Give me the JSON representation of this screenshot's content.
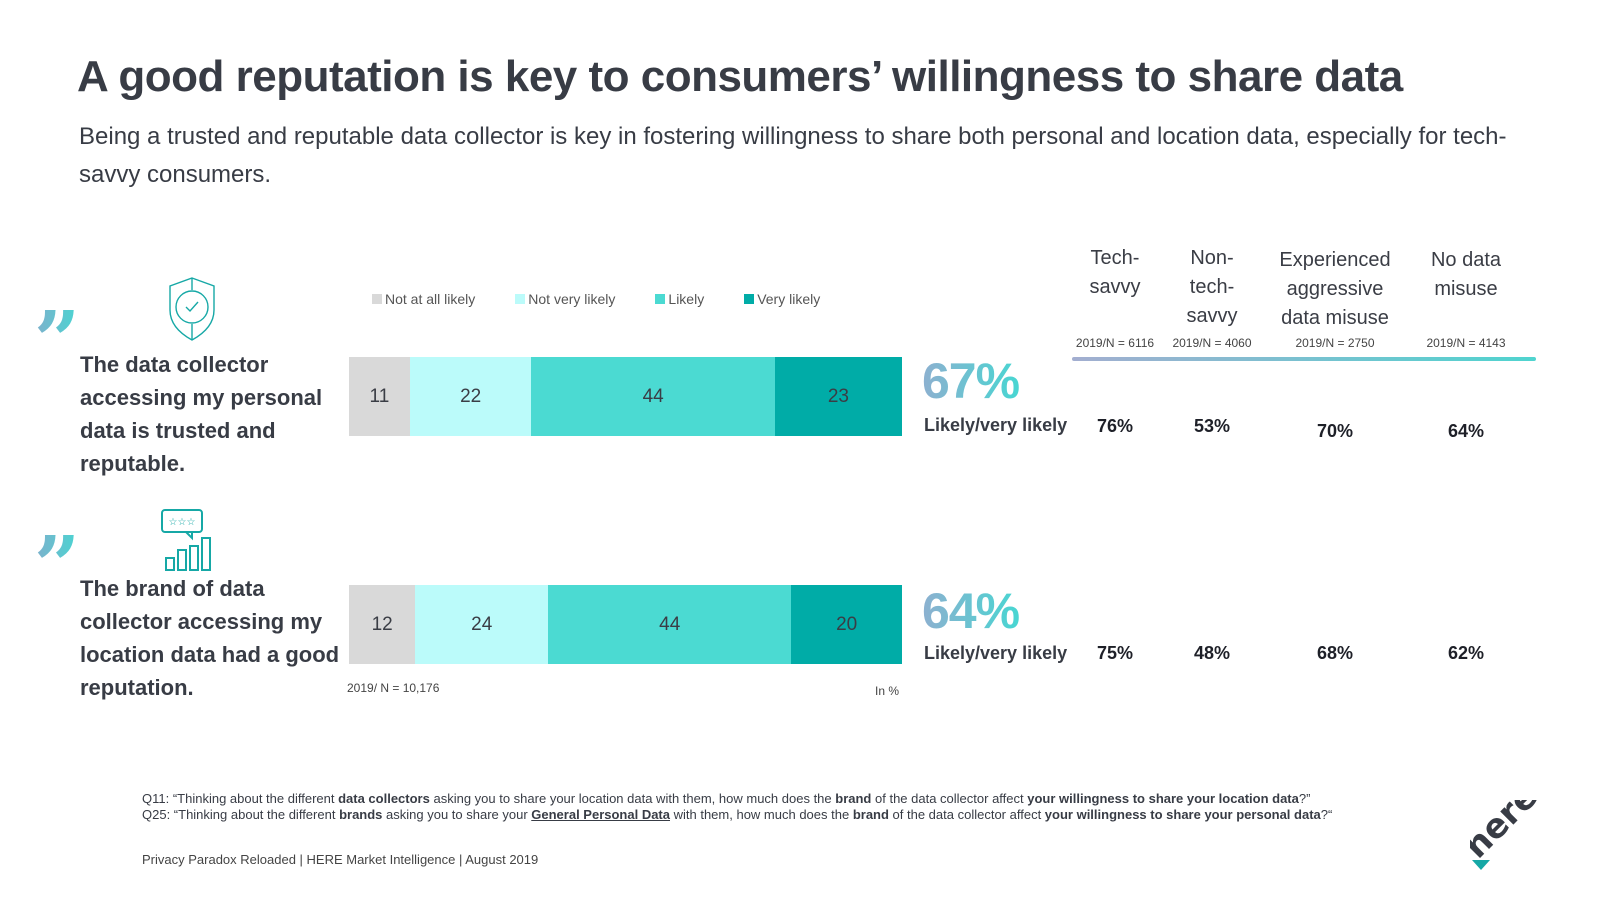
{
  "title": "A good reputation is key to consumers’ willingness to share data",
  "subtitle": "Being a trusted and reputable data collector is key in fostering willingness to share both personal and location data, especially for tech-savvy consumers.",
  "statements": [
    {
      "quote_icon": "quote-icon",
      "icon": "shield-check-icon",
      "text": "The data collector accessing my personal data is trusted and reputable."
    },
    {
      "quote_icon": "quote-icon",
      "icon": "rating-chart-icon",
      "text": "The brand of data collector accessing my location data had a good reputation."
    }
  ],
  "colors": {
    "not_at_all_likely": "#d9d9d9",
    "not_very_likely": "#bbfbfa",
    "likely": "#4bdad2",
    "very_likely": "#00aca7",
    "text_dark": "#383c45"
  },
  "chart_data": {
    "type": "bar",
    "orientation": "horizontal-stacked",
    "categories": [
      "The data collector accessing my personal data is trusted and reputable.",
      "The brand of data collector accessing my location data had a good reputation."
    ],
    "series": [
      {
        "name": "Not at all likely",
        "values": [
          11,
          12
        ]
      },
      {
        "name": "Not very likely",
        "values": [
          22,
          24
        ]
      },
      {
        "name": "Likely",
        "values": [
          44,
          44
        ]
      },
      {
        "name": "Very likely",
        "values": [
          23,
          20
        ]
      }
    ],
    "legend": [
      "Not at all likely",
      "Not very likely",
      "Likely",
      "Very likely"
    ],
    "legend_position": "top",
    "unit_note": "In %",
    "sample_note": "2019/ N = 10,176",
    "xlim": [
      0,
      100
    ],
    "summary": {
      "label": "Likely/very likely",
      "totals": [
        "67%",
        "64%"
      ]
    },
    "segments": {
      "headers": [
        "Tech-savvy",
        "Non-tech-savvy",
        "Experienced aggressive data misuse",
        "No data misuse"
      ],
      "header_lines": [
        [
          "Tech-",
          "savvy"
        ],
        [
          "Non-",
          "tech-",
          "savvy"
        ],
        [
          "Experienced",
          "aggressive",
          "data misuse"
        ],
        [
          "No data",
          "misuse"
        ]
      ],
      "samples": [
        "2019/N = 6116",
        "2019/N = 4060",
        "2019/N = 2750",
        "2019/N = 4143"
      ],
      "values": [
        [
          "76%",
          "53%",
          "70%",
          "64%"
        ],
        [
          "75%",
          "48%",
          "68%",
          "62%"
        ]
      ]
    }
  },
  "footnotes": {
    "q11": {
      "prefix": "Q11: “Thinking about the different ",
      "b1": "data collectors",
      "mid1": " asking you to share your location data with them, how much does the ",
      "b2": "brand",
      "mid2": " of the data collector affect ",
      "b3": "your willingness to share your location data",
      "suffix": "?”"
    },
    "q25": {
      "prefix": "Q25: “Thinking about the different ",
      "b1": "brands",
      "mid1": " asking you to share your ",
      "u1": "General Personal Data",
      "mid2": " with them, how much does the ",
      "b2": "brand",
      "mid3": " of the data collector affect ",
      "b3": "your willingness to share your personal data",
      "suffix": "?“"
    }
  },
  "source": "Privacy Paradox Reloaded | HERE Market Intelligence | August 2019",
  "logo": {
    "text": "here",
    "icon": "here-logo-icon"
  }
}
